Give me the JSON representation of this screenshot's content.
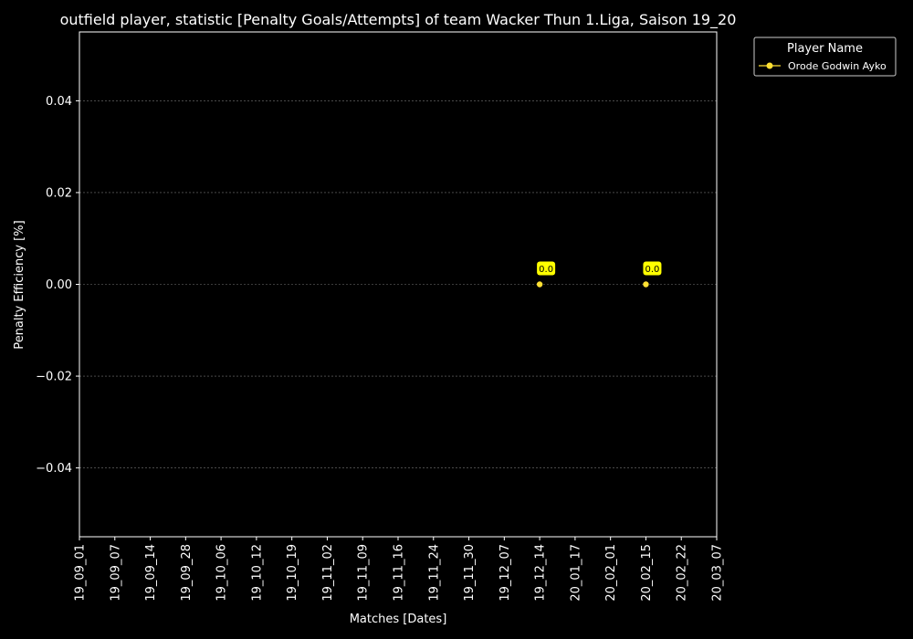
{
  "chart_data": {
    "type": "line",
    "title": "outfield player, statistic [Penalty Goals/Attempts] of team Wacker Thun 1.Liga, Saison 19_20",
    "xlabel": "Matches [Dates]",
    "ylabel": "Penalty Efficiency [%]",
    "categories": [
      "19_09_01",
      "19_09_07",
      "19_09_14",
      "19_09_28",
      "19_10_06",
      "19_10_12",
      "19_10_19",
      "19_11_02",
      "19_11_09",
      "19_11_16",
      "19_11_24",
      "19_11_30",
      "19_12_07",
      "19_12_14",
      "20_01_17",
      "20_02_01",
      "20_02_15",
      "20_02_22",
      "20_03_07"
    ],
    "ylim": [
      -0.055,
      0.055
    ],
    "yticks": [
      -0.04,
      -0.02,
      0.0,
      0.02,
      0.04
    ],
    "ytick_labels": [
      "−0.04",
      "−0.02",
      "0.00",
      "0.02",
      "0.04"
    ],
    "grid": "horizontal dotted",
    "legend": {
      "title": "Player Name",
      "position": "outside top-right"
    },
    "series": [
      {
        "name": "Orode Godwin Ayko",
        "color": "#ffe033",
        "points": [
          {
            "x": "19_12_14",
            "y": 0.0,
            "label": "0.0"
          },
          {
            "x": "20_02_15",
            "y": 0.0,
            "label": "0.0"
          }
        ]
      }
    ]
  },
  "colors": {
    "background": "#000000",
    "foreground": "#ffffff",
    "grid": "#777777",
    "series": "#ffe033",
    "annotation_bg": "#ffff00"
  }
}
